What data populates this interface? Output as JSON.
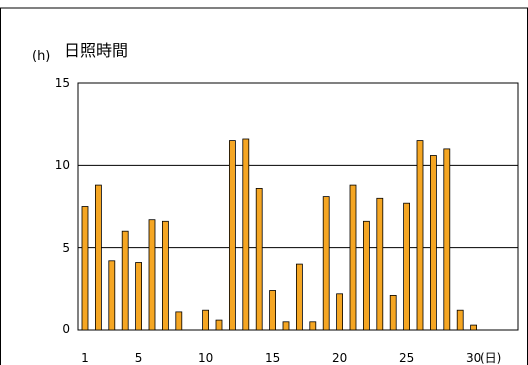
{
  "chart_data": {
    "type": "bar",
    "title": "日照時間",
    "ylabel": "(h)",
    "x_unit": "(日)",
    "x_tick_labels": [
      "1",
      "5",
      "10",
      "15",
      "20",
      "25",
      "30"
    ],
    "y_tick_labels": [
      "0",
      "5",
      "10",
      "15"
    ],
    "ylim": [
      0,
      15
    ],
    "grid": true,
    "x": [
      1,
      2,
      3,
      4,
      5,
      6,
      7,
      8,
      9,
      10,
      11,
      12,
      13,
      14,
      15,
      16,
      17,
      18,
      19,
      20,
      21,
      22,
      23,
      24,
      25,
      26,
      27,
      28,
      29,
      30
    ],
    "values": [
      7.5,
      8.8,
      4.2,
      6.0,
      4.1,
      6.7,
      6.6,
      1.1,
      0.0,
      1.2,
      0.6,
      11.5,
      11.6,
      8.6,
      2.4,
      0.5,
      4.0,
      0.5,
      8.1,
      2.2,
      8.8,
      6.6,
      8.0,
      2.1,
      7.7,
      11.5,
      10.6,
      11.0,
      1.2,
      0.3
    ],
    "colors": {
      "bar_fill": "#f5a623",
      "bar_stroke": "#000000"
    }
  }
}
